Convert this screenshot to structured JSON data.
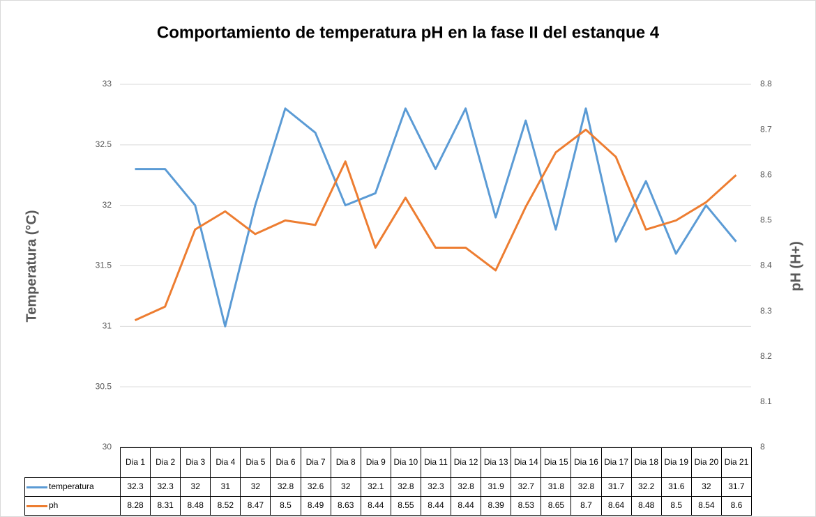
{
  "chart_data": {
    "type": "line",
    "title": "Comportamiento de temperatura pH en la fase II del estanque 4",
    "y_label": "Temperatura (°C)",
    "y2_label": "pH (H+)",
    "categories": [
      "Dia 1",
      "Dia 2",
      "Dia 3",
      "Dia 4",
      "Dia 5",
      "Dia 6",
      "Dia 7",
      "Dia 8",
      "Dia 9",
      "Dia 10",
      "Dia 11",
      "Dia 12",
      "Dia 13",
      "Dia 14",
      "Dia 15",
      "Dia 16",
      "Dia 17",
      "Dia 18",
      "Dia 19",
      "Dia 20",
      "Dia 21"
    ],
    "series": [
      {
        "name": "temperatura",
        "color": "#5b9bd5",
        "values": [
          32.3,
          32.3,
          32,
          31,
          32,
          32.8,
          32.6,
          32,
          32.1,
          32.8,
          32.3,
          32.8,
          31.9,
          32.7,
          31.8,
          32.8,
          31.7,
          32.2,
          31.6,
          32,
          31.7
        ]
      },
      {
        "name": "ph",
        "color": "#ed7d31",
        "axis": "y2",
        "values": [
          8.28,
          8.31,
          8.48,
          8.52,
          8.47,
          8.5,
          8.49,
          8.63,
          8.44,
          8.55,
          8.44,
          8.44,
          8.39,
          8.53,
          8.65,
          8.7,
          8.64,
          8.48,
          8.5,
          8.54,
          8.6
        ]
      }
    ],
    "ylim": [
      30,
      33
    ],
    "yticks": [
      30,
      30.5,
      31,
      31.5,
      32,
      32.5,
      33
    ],
    "y2lim": [
      8,
      8.8
    ],
    "y2ticks": [
      8,
      8.1,
      8.2,
      8.3,
      8.4,
      8.5,
      8.6,
      8.7,
      8.8
    ],
    "grid": true
  }
}
